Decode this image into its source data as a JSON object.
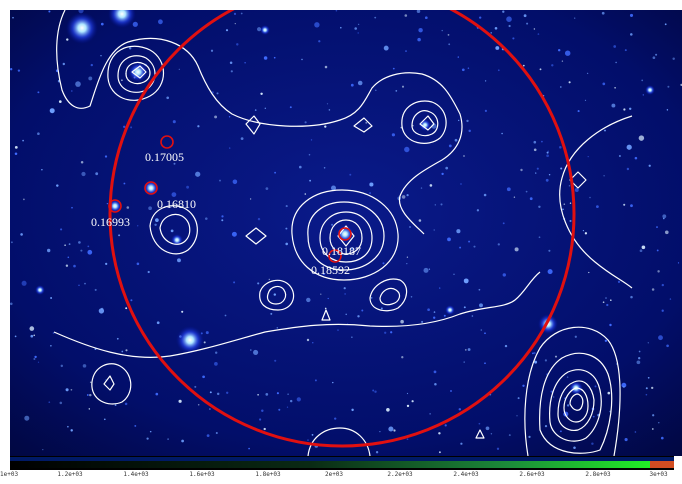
{
  "redshifts": [
    {
      "id": "z1",
      "label": "0.17005"
    },
    {
      "id": "z2",
      "label": "0.16810"
    },
    {
      "id": "z3",
      "label": "0.16993"
    },
    {
      "id": "z4",
      "label": "0.18187"
    },
    {
      "id": "z5",
      "label": "0.18592"
    }
  ],
  "colorbar": {
    "ticks": [
      "1e+03",
      "1.2e+03",
      "1.4e+03",
      "1.6e+03",
      "1.8e+03",
      "2e+03",
      "2.2e+03",
      "2.4e+03",
      "2.6e+03",
      "2.8e+03",
      "3e+03"
    ]
  },
  "colors": {
    "background": "#000a55",
    "contour": "#ffffff",
    "circle": "#e01010"
  }
}
